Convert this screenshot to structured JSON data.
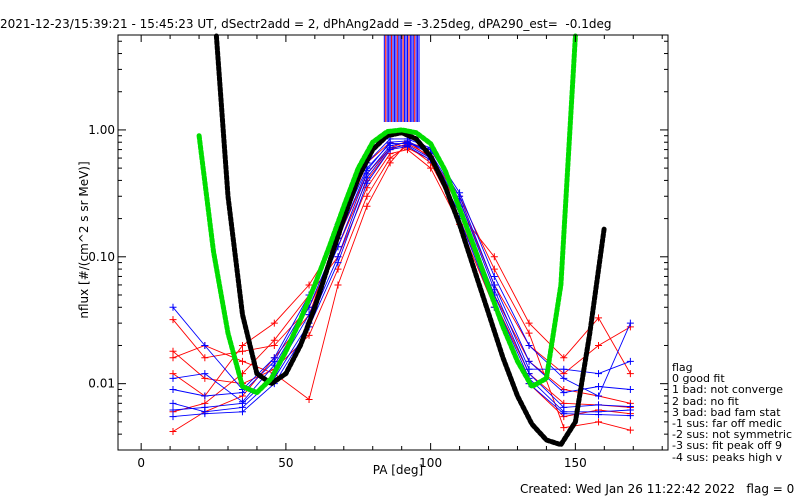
{
  "title": "2021-12-23/15:39:21 - 15:45:23 UT, dSectr2add = 2, dPhAng2add = -3.25deg, dPA290_est=  -0.1deg",
  "footer": {
    "created": "Created: Wed Jan 26 11:22:42 2022",
    "flag": "flag = 0"
  },
  "legend": {
    "title": "flag",
    "entries": [
      "0 good fit",
      "1 bad: not converge",
      "2 bad: no fit",
      "3 bad: bad fam stat",
      "-1 sus: far off medic",
      "-2 sus: not symmetric",
      "-3 sus: fit peak off 9",
      "-4 sus: peaks high v"
    ]
  },
  "colors": {
    "red_series": "#ff0000",
    "blue_series": "#0000ff",
    "green_fit": "#00dd00",
    "black_fit": "#000000",
    "axes": "#000000"
  },
  "chart_data": {
    "type": "line",
    "xlabel": "PA [deg]",
    "ylabel": "nflux [#/(cm^2 s sr MeV)]",
    "xlim": [
      -8,
      182
    ],
    "ylim": [
      0.003,
      5.6
    ],
    "y_scale": "log",
    "x_ticks": [
      {
        "value": 0,
        "label": "0"
      },
      {
        "value": 50,
        "label": "50"
      },
      {
        "value": 100,
        "label": "100"
      },
      {
        "value": 150,
        "label": "150"
      }
    ],
    "y_ticks": [
      {
        "value": 0.01,
        "label": "0.01"
      },
      {
        "value": 0.1,
        "label": "0.10"
      },
      {
        "value": 1.0,
        "label": "1.00"
      }
    ],
    "series": [
      {
        "color": "red",
        "x": [
          11,
          22,
          35,
          46,
          58,
          68,
          78,
          86,
          92,
          100,
          110,
          122,
          134,
          146,
          158,
          169
        ],
        "y": [
          0.018,
          0.011,
          0.01,
          0.013,
          0.024,
          0.08,
          0.3,
          0.6,
          0.75,
          0.55,
          0.2,
          0.045,
          0.012,
          0.007,
          0.0068,
          0.0065
        ]
      },
      {
        "color": "red",
        "x": [
          11,
          22,
          35,
          46,
          58,
          68,
          78,
          86,
          92,
          100,
          110,
          122,
          134,
          146,
          158,
          169
        ],
        "y": [
          0.032,
          0.016,
          0.018,
          0.02,
          0.04,
          0.12,
          0.4,
          0.7,
          0.78,
          0.62,
          0.28,
          0.06,
          0.02,
          0.012,
          0.02,
          0.028
        ]
      },
      {
        "color": "red",
        "x": [
          11,
          22,
          35,
          46,
          58,
          68,
          78,
          86,
          92,
          100,
          110,
          122,
          134,
          146,
          158,
          169
        ],
        "y": [
          0.012,
          0.008,
          0.02,
          0.03,
          0.06,
          0.14,
          0.45,
          0.72,
          0.82,
          0.6,
          0.25,
          0.05,
          0.015,
          0.009,
          0.008,
          0.007
        ]
      },
      {
        "color": "red",
        "x": [
          11,
          22,
          35,
          46,
          58,
          68,
          78,
          86,
          92,
          100,
          110,
          122,
          134,
          146,
          158,
          169
        ],
        "y": [
          0.006,
          0.007,
          0.012,
          0.022,
          0.05,
          0.1,
          0.35,
          0.65,
          0.7,
          0.5,
          0.18,
          0.04,
          0.01,
          0.0055,
          0.0062,
          0.0058
        ]
      },
      {
        "color": "red",
        "x": [
          11,
          22,
          35,
          46,
          58,
          68,
          78,
          86,
          92,
          100,
          110,
          122,
          134,
          146,
          158,
          169
        ],
        "y": [
          0.016,
          0.02,
          0.015,
          0.012,
          0.0075,
          0.06,
          0.25,
          0.55,
          0.8,
          0.7,
          0.3,
          0.08,
          0.025,
          0.0045,
          0.005,
          0.0043
        ]
      },
      {
        "color": "red",
        "x": [
          11,
          22,
          35,
          46,
          58,
          68,
          78,
          86,
          92,
          100,
          110,
          122,
          134,
          146,
          158,
          169
        ],
        "y": [
          0.0042,
          0.006,
          0.008,
          0.016,
          0.035,
          0.15,
          0.55,
          0.8,
          0.72,
          0.58,
          0.22,
          0.1,
          0.03,
          0.016,
          0.033,
          0.012
        ]
      },
      {
        "color": "blue",
        "x": [
          11,
          22,
          35,
          46,
          58,
          68,
          78,
          86,
          92,
          100,
          110,
          122,
          134,
          146,
          158,
          169
        ],
        "y": [
          0.0062,
          0.0065,
          0.007,
          0.012,
          0.035,
          0.12,
          0.45,
          0.75,
          0.8,
          0.65,
          0.25,
          0.05,
          0.012,
          0.0065,
          0.0068,
          0.0066
        ]
      },
      {
        "color": "blue",
        "x": [
          11,
          22,
          35,
          46,
          58,
          68,
          78,
          86,
          92,
          100,
          110,
          122,
          134,
          146,
          158,
          169
        ],
        "y": [
          0.009,
          0.008,
          0.0085,
          0.015,
          0.045,
          0.16,
          0.5,
          0.78,
          0.78,
          0.7,
          0.3,
          0.06,
          0.015,
          0.0085,
          0.0095,
          0.009
        ]
      },
      {
        "color": "blue",
        "x": [
          11,
          22,
          35,
          46,
          58,
          68,
          78,
          86,
          92,
          100,
          110,
          122,
          134,
          146,
          158,
          169
        ],
        "y": [
          0.007,
          0.006,
          0.0065,
          0.011,
          0.03,
          0.1,
          0.42,
          0.72,
          0.76,
          0.6,
          0.22,
          0.045,
          0.011,
          0.006,
          0.006,
          0.0062
        ]
      },
      {
        "color": "blue",
        "x": [
          11,
          22,
          35,
          46,
          58,
          68,
          78,
          86,
          92,
          100,
          110,
          122,
          134,
          146,
          158,
          169
        ],
        "y": [
          0.011,
          0.012,
          0.0072,
          0.014,
          0.04,
          0.14,
          0.48,
          0.8,
          0.82,
          0.66,
          0.28,
          0.055,
          0.013,
          0.013,
          0.012,
          0.015
        ]
      },
      {
        "color": "blue",
        "x": [
          11,
          22,
          35,
          46,
          58,
          68,
          78,
          86,
          92,
          100,
          110,
          122,
          134,
          146,
          158,
          169
        ],
        "y": [
          0.0055,
          0.0058,
          0.006,
          0.01,
          0.028,
          0.09,
          0.38,
          0.7,
          0.74,
          0.58,
          0.2,
          0.04,
          0.01,
          0.0058,
          0.0057,
          0.0056
        ]
      },
      {
        "color": "blue",
        "x": [
          11,
          22,
          35,
          46,
          58,
          68,
          78,
          86,
          92,
          100,
          110,
          122,
          134,
          146,
          158,
          169
        ],
        "y": [
          0.04,
          0.02,
          0.009,
          0.016,
          0.05,
          0.18,
          0.55,
          0.85,
          0.85,
          0.72,
          0.32,
          0.07,
          0.02,
          0.011,
          0.008,
          0.03
        ]
      }
    ],
    "green_fit": {
      "color": "green",
      "x": [
        20,
        25,
        30,
        35,
        40,
        45,
        50,
        55,
        60,
        65,
        70,
        75,
        80,
        85,
        90,
        95,
        100,
        105,
        110,
        115,
        120,
        125,
        130,
        135,
        140,
        145,
        150
      ],
      "y": [
        0.9,
        0.11,
        0.025,
        0.0095,
        0.0085,
        0.011,
        0.018,
        0.032,
        0.06,
        0.12,
        0.25,
        0.5,
        0.8,
        0.97,
        1.0,
        0.95,
        0.78,
        0.48,
        0.24,
        0.12,
        0.058,
        0.028,
        0.015,
        0.0095,
        0.011,
        0.06,
        5.5
      ]
    },
    "black_fit": {
      "color": "black",
      "x": [
        26,
        30,
        35,
        40,
        45,
        50,
        55,
        60,
        65,
        70,
        75,
        80,
        85,
        90,
        95,
        100,
        105,
        110,
        115,
        120,
        125,
        130,
        135,
        140,
        145,
        150,
        155,
        160
      ],
      "y": [
        5.5,
        0.3,
        0.035,
        0.012,
        0.01,
        0.012,
        0.02,
        0.04,
        0.09,
        0.2,
        0.42,
        0.7,
        0.9,
        0.95,
        0.85,
        0.62,
        0.36,
        0.18,
        0.08,
        0.036,
        0.016,
        0.008,
        0.0048,
        0.0036,
        0.0033,
        0.005,
        0.025,
        0.17
      ]
    },
    "peak_band": {
      "x_from": 84,
      "x_to": 96
    }
  }
}
